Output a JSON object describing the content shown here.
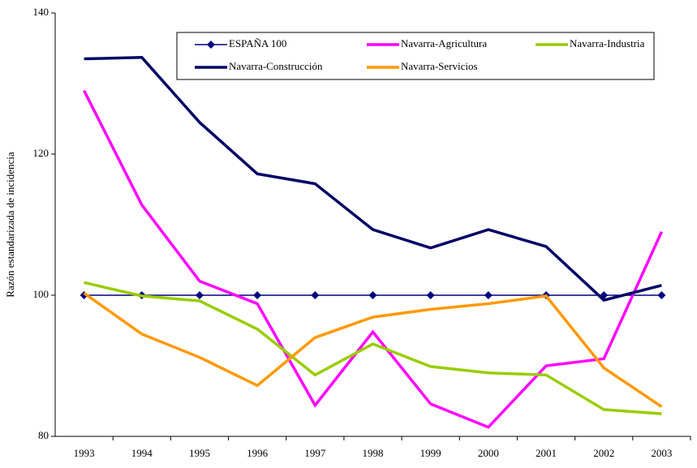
{
  "chart_data": {
    "type": "line",
    "y_label": "Razón estandarizada de incidencia",
    "categories": [
      "1993",
      "1994",
      "1995",
      "1996",
      "1997",
      "1998",
      "1999",
      "2000",
      "2001",
      "2002",
      "2003"
    ],
    "ylim": [
      80,
      140
    ],
    "yticks": [
      80,
      100,
      120,
      140
    ],
    "grid": false,
    "series": [
      {
        "name": "ESPAÑA 100",
        "color": "#000080",
        "width": 1.5,
        "marker": "diamond",
        "values": [
          100,
          100,
          100,
          100,
          100,
          100,
          100,
          100,
          100,
          100,
          100
        ]
      },
      {
        "name": "Navarra-Agricultura",
        "color": "#ff00ff",
        "width": 3.5,
        "values": [
          129,
          112.8,
          102,
          98.8,
          84.4,
          94.8,
          84.6,
          81.3,
          90,
          91,
          109
        ]
      },
      {
        "name": "Navarra-Industria",
        "color": "#99cc00",
        "width": 3.5,
        "values": [
          101.8,
          99.9,
          99.2,
          95.2,
          88.7,
          93.1,
          89.9,
          89,
          88.7,
          83.8,
          83.2
        ]
      },
      {
        "name": "Navarra-Construcción",
        "color": "#000066",
        "width": 3.5,
        "values": [
          133.5,
          133.7,
          124.5,
          117.2,
          115.8,
          109.3,
          106.7,
          109.3,
          106.9,
          99.3,
          101.4
        ]
      },
      {
        "name": "Navarra-Servicios",
        "color": "#ff9900",
        "width": 3.5,
        "values": [
          100.3,
          94.5,
          91.2,
          87.2,
          94,
          96.9,
          98,
          98.8,
          99.9,
          89.7,
          84.2
        ]
      }
    ]
  }
}
